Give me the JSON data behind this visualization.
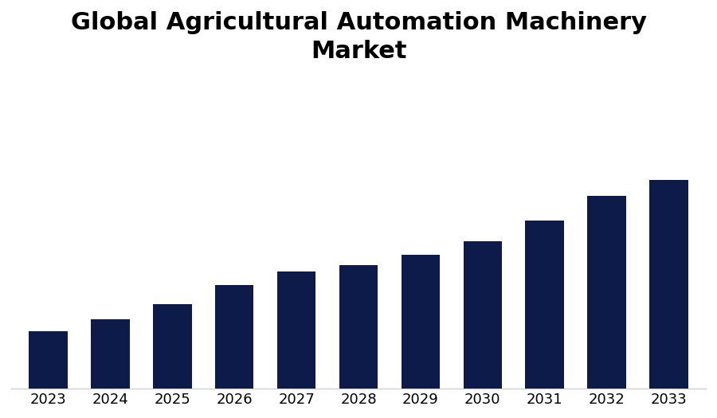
{
  "title": "Global Agricultural Automation Machinery\nMarket",
  "categories": [
    "2023",
    "2024",
    "2025",
    "2026",
    "2027",
    "2028",
    "2029",
    "2030",
    "2031",
    "2032",
    "2033"
  ],
  "values": [
    1.0,
    1.22,
    1.48,
    1.82,
    2.05,
    2.17,
    2.35,
    2.58,
    2.95,
    3.38,
    3.65
  ],
  "bar_color": "#0d1b4b",
  "background_color": "#ffffff",
  "title_fontsize": 22,
  "tick_fontsize": 13,
  "ylim": [
    0,
    5.5
  ],
  "bar_width": 0.62
}
